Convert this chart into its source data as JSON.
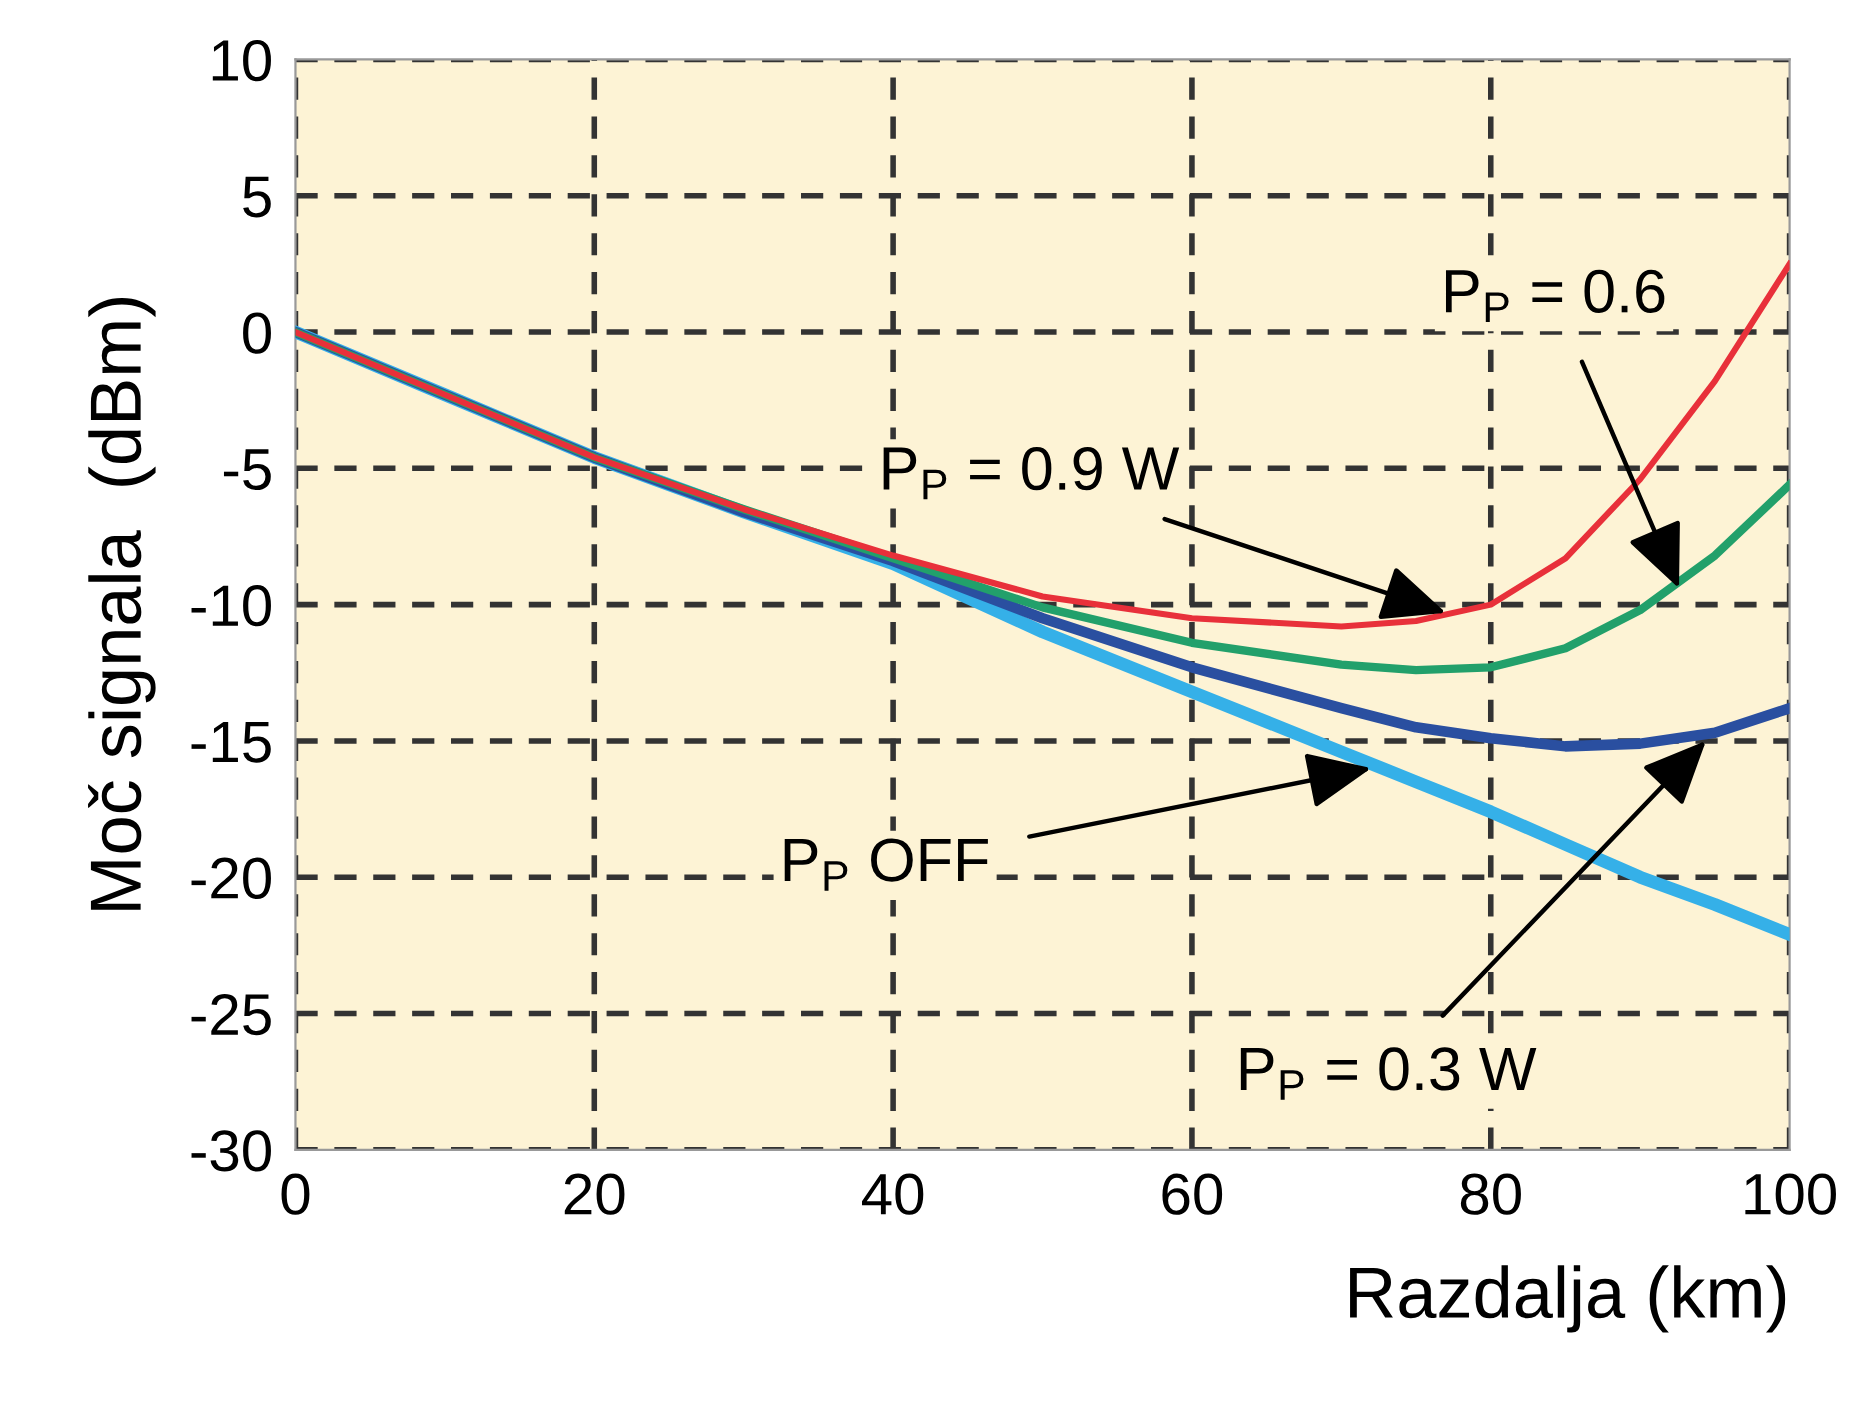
{
  "chart_data": {
    "type": "line",
    "xlabel": "Razdalja (km)",
    "ylabel": "Moč signala  (dBm)",
    "x": [
      0,
      10,
      20,
      30,
      40,
      50,
      60,
      70,
      75,
      80,
      85,
      90,
      95,
      100
    ],
    "series": [
      {
        "color": "#35b0e8",
        "values": [
          0,
          -2.3,
          -4.6,
          -6.6,
          -8.5,
          -11,
          -13.2,
          -15.4,
          -16.5,
          -17.6,
          -18.8,
          -20,
          -21,
          -22.1
        ]
      },
      {
        "color": "#2a4fa0",
        "values": [
          0,
          -2.3,
          -4.6,
          -6.6,
          -8.4,
          -10.5,
          -12.3,
          -13.8,
          -14.5,
          -14.9,
          -15.2,
          -15.1,
          -14.7,
          -13.8
        ]
      },
      {
        "color": "#22a06b",
        "values": [
          0,
          -2.3,
          -4.6,
          -6.5,
          -8.3,
          -10.1,
          -11.4,
          -12.2,
          -12.4,
          -12.3,
          -11.6,
          -10.2,
          -8.2,
          -5.6
        ]
      },
      {
        "color": "#e8303a",
        "values": [
          0,
          -2.3,
          -4.6,
          -6.5,
          -8.2,
          -9.7,
          -10.5,
          -10.8,
          -10.6,
          -10,
          -8.3,
          -5.4,
          -1.8,
          2.5
        ]
      }
    ],
    "xlim": [
      0,
      100
    ],
    "xticks": [
      0,
      20,
      40,
      60,
      80,
      100
    ],
    "ylim": [
      -30,
      10
    ],
    "yticks": [
      -30,
      -25,
      -20,
      -15,
      -10,
      -5,
      0,
      5,
      10
    ],
    "grid": true,
    "legend": false,
    "line_style": "solid",
    "marker": "none",
    "annotations": [
      {
        "text": "P$_{P}$ = 0.6",
        "x": 92.6,
        "y": -9.4
      },
      {
        "text": "P$_{P}$ = 0.9 W",
        "x": 77,
        "y": -10.3
      },
      {
        "text": "P$_{P}$ OFF",
        "x": 72,
        "y": -16
      },
      {
        "text": "P$_{P}$ = 0.3 W",
        "x": 94.4,
        "y": -15
      }
    ]
  }
}
